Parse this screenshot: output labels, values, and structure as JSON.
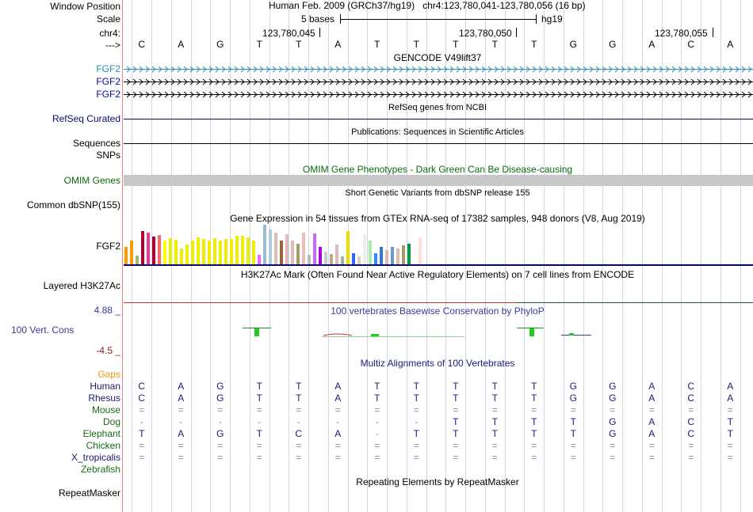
{
  "header": {
    "window_position_label": "Window Position",
    "scale_label": "Scale",
    "chrom_label": "chr4:",
    "strand_label": "--->",
    "assembly_text": "Human Feb. 2009 (GRCh37/hg19)   chr4:123,780,041-123,780,056 (16 bp)",
    "scale_text": "5 bases",
    "db_text": "hg19",
    "positions": [
      "123,780,045",
      "123,780,050",
      "123,780,055"
    ]
  },
  "bases": [
    "C",
    "A",
    "G",
    "T",
    "T",
    "A",
    "T",
    "T",
    "T",
    "T",
    "T",
    "G",
    "G",
    "A",
    "C",
    "A"
  ],
  "tracks": {
    "gencode_title": "GENCODE V49lift37",
    "gencode_items": [
      "FGF2",
      "FGF2",
      "FGF2"
    ],
    "refseq_title": "RefSeq genes from NCBI",
    "refseq_label": "RefSeq Curated",
    "pubs_title": "Publications: Sequences in Scientific Articles",
    "sequences_label": "Sequences",
    "snps_label": "SNPs",
    "omim_title": "OMIM Gene Phenotypes - Dark Green Can Be Disease-causing",
    "omim_label": "OMIM Genes",
    "dbsnp_title": "Short Genetic Variants from dbSNP release 155",
    "dbsnp_label": "Common dbSNP(155)",
    "gtex_title": "Gene Expression in 54 tissues from GTEx RNA-seq of 17382 samples, 948 donors (V8, Aug 2019)",
    "gtex_label": "FGF2",
    "h3k27_title": "H3K27Ac Mark (Often Found Near Active Regulatory Elements) on 7 cell lines from ENCODE",
    "h3k27_label": "Layered H3K27Ac",
    "phylop_title": "100 vertebrates Basewise Conservation by PhyloP",
    "phylop_label": "100 Vert. Cons",
    "phylop_max": "4.88 _",
    "phylop_min": "-4.5 _",
    "multiz_title": "Multiz Alignments of 100 Vertebrates",
    "gaps_label": "Gaps",
    "repeat_title": "Repeating Elements by RepeatMasker",
    "repeat_label": "RepeatMasker"
  },
  "alignment": [
    {
      "species": "Human",
      "row": [
        "C",
        "A",
        "G",
        "T",
        "T",
        "A",
        "T",
        "T",
        "T",
        "T",
        "T",
        "G",
        "G",
        "A",
        "C",
        "A"
      ]
    },
    {
      "species": "Rhesus",
      "row": [
        "C",
        "A",
        "G",
        "T",
        "T",
        "A",
        "T",
        "T",
        "T",
        "T",
        "T",
        "G",
        "G",
        "A",
        "C",
        "A"
      ]
    },
    {
      "species": "Mouse",
      "row": [
        "=",
        "=",
        "=",
        "=",
        "=",
        "=",
        "=",
        "=",
        "=",
        "=",
        "=",
        "=",
        "=",
        "=",
        "=",
        "="
      ]
    },
    {
      "species": "Dog",
      "row": [
        "-",
        "-",
        "-",
        "-",
        "-",
        "-",
        "-",
        "-",
        "T",
        "T",
        "T",
        "T",
        "G",
        "A",
        "C",
        "T"
      ]
    },
    {
      "species": "Elephant",
      "row": [
        "T",
        "A",
        "G",
        "T",
        "C",
        "A",
        "-",
        "T",
        "T",
        "T",
        "T",
        "T",
        "G",
        "A",
        "C",
        "T"
      ]
    },
    {
      "species": "Chicken",
      "row": [
        "=",
        "=",
        "=",
        "=",
        "=",
        "=",
        "=",
        "=",
        "=",
        "=",
        "=",
        "=",
        "=",
        "=",
        "=",
        "="
      ]
    },
    {
      "species": "X_tropicalis",
      "row": [
        "=",
        "=",
        "=",
        "=",
        "=",
        "=",
        "=",
        "=",
        "=",
        "=",
        "=",
        "=",
        "=",
        "=",
        "=",
        "="
      ]
    },
    {
      "species": "Zebrafish",
      "row": [
        "",
        "",
        "",
        "",
        "",
        "",
        "",
        "",
        "",
        "",
        "",
        "",
        "",
        "",
        "",
        ""
      ]
    }
  ],
  "gtex_values": [
    22,
    30,
    11,
    42,
    40,
    35,
    37,
    30,
    33,
    31,
    20,
    25,
    30,
    34,
    32,
    30,
    33,
    30,
    32,
    32,
    36,
    36,
    34,
    30,
    12,
    50,
    44,
    40,
    30,
    38,
    30,
    26,
    40,
    12,
    39,
    22,
    16,
    13,
    25,
    10,
    42,
    14,
    10,
    38,
    30,
    14,
    22,
    18,
    22,
    20,
    24,
    26,
    43,
    34
  ],
  "gtex_colors": [
    "#ff9900",
    "#ff9900",
    "#99bb66",
    "#aa0033",
    "#ee3399",
    "#aa0033",
    "#ff6666",
    "#ffff00",
    "#eeee00",
    "#eeee00",
    "#eeee00",
    "#eeee00",
    "#eeee00",
    "#eeee00",
    "#eeee00",
    "#eeee00",
    "#eeee00",
    "#eeee00",
    "#eeee00",
    "#eeee00",
    "#eeee00",
    "#eeee00",
    "#eeee00",
    "#eeee00",
    "#ee66ff",
    "#99bbcc",
    "#aaccdd",
    "#ddbbbb",
    "#996633",
    "#ddbbbb",
    "#ddbbbb",
    "#aa9966",
    "#eebbbb",
    "#bbbbbb",
    "#cc66ff",
    "#aa00dd",
    "#cccccc",
    "#bbaa88",
    "#ddbbbb",
    "#aaaaaa",
    "#eedd00",
    "#3366ff",
    "#ddccbb",
    "#eeeeee",
    "#aaeeaa",
    "#3388ff",
    "#3377dd",
    "#ddbbbb",
    "#6699cc",
    "#ddbbaa",
    "#aa9966",
    "#009944",
    "#ffffff",
    "#ffdddd"
  ]
}
